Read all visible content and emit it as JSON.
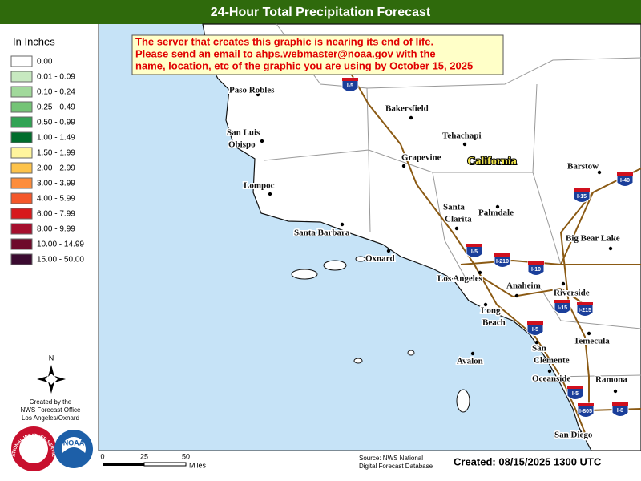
{
  "header": {
    "title": "24-Hour Total Precipitation Forecast"
  },
  "legend": {
    "title": "In Inches",
    "items": [
      {
        "label": "0.00",
        "color": "#ffffff"
      },
      {
        "label": "0.01 - 0.09",
        "color": "#c7e9c0"
      },
      {
        "label": "0.10 - 0.24",
        "color": "#a1d99b"
      },
      {
        "label": "0.25 - 0.49",
        "color": "#74c476"
      },
      {
        "label": "0.50 - 0.99",
        "color": "#31a354"
      },
      {
        "label": "1.00 - 1.49",
        "color": "#006d2c"
      },
      {
        "label": "1.50 - 1.99",
        "color": "#fff59d"
      },
      {
        "label": "2.00 - 2.99",
        "color": "#fdc34a"
      },
      {
        "label": "3.00 - 3.99",
        "color": "#fd8d3c"
      },
      {
        "label": "4.00 - 5.99",
        "color": "#f4572a"
      },
      {
        "label": "6.00 - 7.99",
        "color": "#d7191c"
      },
      {
        "label": "8.00 - 9.99",
        "color": "#a50f2d"
      },
      {
        "label": "10.00 - 14.99",
        "color": "#6e0a2a"
      },
      {
        "label": "15.00 - 50.00",
        "color": "#3b0a30"
      }
    ]
  },
  "notice": [
    "The server that creates this graphic is nearing its end of life.",
    "Please send an email to ahps.webmaster@noaa.gov with the",
    "name, location, etc of the graphic you are using by October 15, 2025"
  ],
  "compass": "N",
  "credit": [
    "Created by the",
    "NWS Forecast Office",
    "Los Angeles/Oxnard"
  ],
  "logos": {
    "nws": "NATIONAL WEATHER SERVICE",
    "noaa": "NOAA"
  },
  "scale": {
    "ticks": [
      0,
      25,
      50
    ],
    "unit": "Miles"
  },
  "source": [
    "Source: NWS National",
    "Digital Forecast Database"
  ],
  "created": "Created: 08/15/2025 1300 UTC",
  "map": {
    "state": "California",
    "cities": [
      [
        "Paso Robles"
      ],
      [
        "San Luis",
        "Obispo"
      ],
      [
        "Lompoc"
      ],
      [
        "Santa Barbara"
      ],
      [
        "Oxnard"
      ],
      [
        "Bakersfield"
      ],
      [
        "Tehachapi"
      ],
      [
        "Grapevine"
      ],
      [
        "Santa",
        "Clarita"
      ],
      [
        "Palmdale"
      ],
      [
        "Barstow"
      ],
      [
        "Big Bear Lake"
      ],
      [
        "Los Angeles"
      ],
      [
        "Anaheim"
      ],
      [
        "Riverside"
      ],
      [
        "Long",
        "Beach"
      ],
      [
        "Temecula"
      ],
      [
        "Avalon"
      ],
      [
        "San",
        "Clemente"
      ],
      [
        "Oceanside"
      ],
      [
        "Ramona"
      ],
      [
        "San Diego"
      ]
    ],
    "highways": [
      "I-5",
      "I-5",
      "I-210",
      "I-10",
      "I-15",
      "I-40",
      "I-15",
      "I-215",
      "I-5",
      "I-5",
      "I-805",
      "I-8"
    ]
  }
}
